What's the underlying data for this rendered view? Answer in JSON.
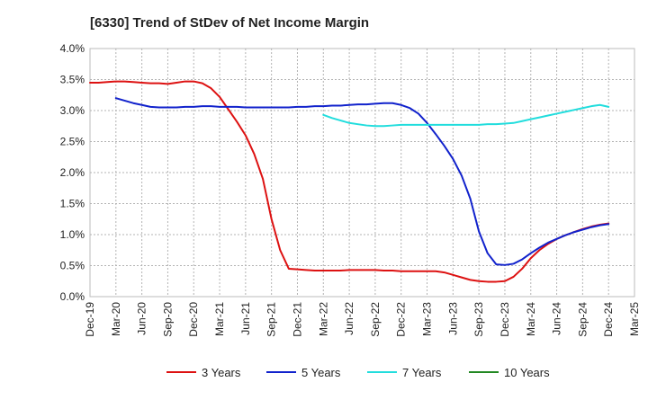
{
  "chart_data": {
    "type": "line",
    "title": "[6330]  Trend of StDev of Net Income Margin",
    "xlabel": "",
    "ylabel": "",
    "x_ticks": [
      "Dec-19",
      "Mar-20",
      "Jun-20",
      "Sep-20",
      "Dec-20",
      "Mar-21",
      "Jun-21",
      "Sep-21",
      "Dec-21",
      "Mar-22",
      "Jun-22",
      "Sep-22",
      "Dec-22",
      "Mar-23",
      "Jun-23",
      "Sep-23",
      "Dec-23",
      "Mar-24",
      "Jun-24",
      "Sep-24",
      "Dec-24",
      "Mar-25"
    ],
    "y_ticks": [
      "0.0%",
      "0.5%",
      "1.0%",
      "1.5%",
      "2.0%",
      "2.5%",
      "3.0%",
      "3.5%",
      "4.0%"
    ],
    "ylim": [
      0,
      4.0
    ],
    "grid": true,
    "legend_position": "bottom",
    "series": [
      {
        "name": "3 Years",
        "color": "#dd1111",
        "points": [
          [
            "Dec-19",
            3.45
          ],
          [
            "Jan-20",
            3.45
          ],
          [
            "Feb-20",
            3.46
          ],
          [
            "Mar-20",
            3.47
          ],
          [
            "Apr-20",
            3.47
          ],
          [
            "May-20",
            3.46
          ],
          [
            "Jun-20",
            3.45
          ],
          [
            "Jul-20",
            3.44
          ],
          [
            "Aug-20",
            3.44
          ],
          [
            "Sep-20",
            3.43
          ],
          [
            "Oct-20",
            3.45
          ],
          [
            "Nov-20",
            3.47
          ],
          [
            "Dec-20",
            3.47
          ],
          [
            "Jan-21",
            3.44
          ],
          [
            "Feb-21",
            3.36
          ],
          [
            "Mar-21",
            3.22
          ],
          [
            "Apr-21",
            3.02
          ],
          [
            "May-21",
            2.82
          ],
          [
            "Jun-21",
            2.6
          ],
          [
            "Jul-21",
            2.3
          ],
          [
            "Aug-21",
            1.9
          ],
          [
            "Sep-21",
            1.25
          ],
          [
            "Oct-21",
            0.75
          ],
          [
            "Nov-21",
            0.45
          ],
          [
            "Dec-21",
            0.44
          ],
          [
            "Jan-22",
            0.43
          ],
          [
            "Feb-22",
            0.42
          ],
          [
            "Mar-22",
            0.42
          ],
          [
            "Apr-22",
            0.42
          ],
          [
            "May-22",
            0.42
          ],
          [
            "Jun-22",
            0.43
          ],
          [
            "Jul-22",
            0.43
          ],
          [
            "Aug-22",
            0.43
          ],
          [
            "Sep-22",
            0.43
          ],
          [
            "Oct-22",
            0.42
          ],
          [
            "Nov-22",
            0.42
          ],
          [
            "Dec-22",
            0.41
          ],
          [
            "Jan-23",
            0.41
          ],
          [
            "Feb-23",
            0.41
          ],
          [
            "Mar-23",
            0.41
          ],
          [
            "Apr-23",
            0.41
          ],
          [
            "May-23",
            0.39
          ],
          [
            "Jun-23",
            0.35
          ],
          [
            "Jul-23",
            0.31
          ],
          [
            "Aug-23",
            0.27
          ],
          [
            "Sep-23",
            0.25
          ],
          [
            "Oct-23",
            0.24
          ],
          [
            "Nov-23",
            0.24
          ],
          [
            "Dec-23",
            0.25
          ],
          [
            "Jan-24",
            0.32
          ],
          [
            "Feb-24",
            0.45
          ],
          [
            "Mar-24",
            0.62
          ],
          [
            "Apr-24",
            0.75
          ],
          [
            "May-24",
            0.85
          ],
          [
            "Jun-24",
            0.93
          ],
          [
            "Jul-24",
            0.99
          ],
          [
            "Aug-24",
            1.04
          ],
          [
            "Sep-24",
            1.09
          ],
          [
            "Oct-24",
            1.13
          ],
          [
            "Nov-24",
            1.16
          ],
          [
            "Dec-24",
            1.18
          ]
        ]
      },
      {
        "name": "5 Years",
        "color": "#1122cc",
        "points": [
          [
            "Mar-20",
            3.2
          ],
          [
            "Apr-20",
            3.16
          ],
          [
            "May-20",
            3.12
          ],
          [
            "Jun-20",
            3.09
          ],
          [
            "Jul-20",
            3.06
          ],
          [
            "Aug-20",
            3.05
          ],
          [
            "Sep-20",
            3.05
          ],
          [
            "Oct-20",
            3.05
          ],
          [
            "Nov-20",
            3.06
          ],
          [
            "Dec-20",
            3.06
          ],
          [
            "Jan-21",
            3.07
          ],
          [
            "Feb-21",
            3.07
          ],
          [
            "Mar-21",
            3.06
          ],
          [
            "Apr-21",
            3.06
          ],
          [
            "May-21",
            3.06
          ],
          [
            "Jun-21",
            3.05
          ],
          [
            "Jul-21",
            3.05
          ],
          [
            "Aug-21",
            3.05
          ],
          [
            "Sep-21",
            3.05
          ],
          [
            "Oct-21",
            3.05
          ],
          [
            "Nov-21",
            3.05
          ],
          [
            "Dec-21",
            3.06
          ],
          [
            "Jan-22",
            3.06
          ],
          [
            "Feb-22",
            3.07
          ],
          [
            "Mar-22",
            3.07
          ],
          [
            "Apr-22",
            3.08
          ],
          [
            "May-22",
            3.08
          ],
          [
            "Jun-22",
            3.09
          ],
          [
            "Jul-22",
            3.1
          ],
          [
            "Aug-22",
            3.1
          ],
          [
            "Sep-22",
            3.11
          ],
          [
            "Oct-22",
            3.12
          ],
          [
            "Nov-22",
            3.12
          ],
          [
            "Dec-22",
            3.09
          ],
          [
            "Jan-23",
            3.04
          ],
          [
            "Feb-23",
            2.95
          ],
          [
            "Mar-23",
            2.8
          ],
          [
            "Apr-23",
            2.62
          ],
          [
            "May-23",
            2.43
          ],
          [
            "Jun-23",
            2.22
          ],
          [
            "Jul-23",
            1.95
          ],
          [
            "Aug-23",
            1.58
          ],
          [
            "Sep-23",
            1.05
          ],
          [
            "Oct-23",
            0.7
          ],
          [
            "Nov-23",
            0.52
          ],
          [
            "Dec-23",
            0.51
          ],
          [
            "Jan-24",
            0.53
          ],
          [
            "Feb-24",
            0.6
          ],
          [
            "Mar-24",
            0.7
          ],
          [
            "Apr-24",
            0.79
          ],
          [
            "May-24",
            0.87
          ],
          [
            "Jun-24",
            0.93
          ],
          [
            "Jul-24",
            0.99
          ],
          [
            "Aug-24",
            1.04
          ],
          [
            "Sep-24",
            1.08
          ],
          [
            "Oct-24",
            1.12
          ],
          [
            "Nov-24",
            1.15
          ],
          [
            "Dec-24",
            1.17
          ]
        ]
      },
      {
        "name": "7 Years",
        "color": "#22dddd",
        "points": [
          [
            "Mar-22",
            2.93
          ],
          [
            "Apr-22",
            2.88
          ],
          [
            "May-22",
            2.84
          ],
          [
            "Jun-22",
            2.8
          ],
          [
            "Jul-22",
            2.78
          ],
          [
            "Aug-22",
            2.76
          ],
          [
            "Sep-22",
            2.75
          ],
          [
            "Oct-22",
            2.75
          ],
          [
            "Nov-22",
            2.76
          ],
          [
            "Dec-22",
            2.77
          ],
          [
            "Jan-23",
            2.77
          ],
          [
            "Feb-23",
            2.77
          ],
          [
            "Mar-23",
            2.77
          ],
          [
            "Apr-23",
            2.77
          ],
          [
            "May-23",
            2.77
          ],
          [
            "Jun-23",
            2.77
          ],
          [
            "Jul-23",
            2.77
          ],
          [
            "Aug-23",
            2.77
          ],
          [
            "Sep-23",
            2.77
          ],
          [
            "Oct-23",
            2.78
          ],
          [
            "Nov-23",
            2.78
          ],
          [
            "Dec-23",
            2.79
          ],
          [
            "Jan-24",
            2.8
          ],
          [
            "Feb-24",
            2.83
          ],
          [
            "Mar-24",
            2.86
          ],
          [
            "Apr-24",
            2.89
          ],
          [
            "May-24",
            2.92
          ],
          [
            "Jun-24",
            2.95
          ],
          [
            "Jul-24",
            2.98
          ],
          [
            "Aug-24",
            3.01
          ],
          [
            "Sep-24",
            3.04
          ],
          [
            "Oct-24",
            3.07
          ],
          [
            "Nov-24",
            3.09
          ],
          [
            "Dec-24",
            3.06
          ]
        ]
      },
      {
        "name": "10 Years",
        "color": "#228822",
        "points": []
      }
    ]
  }
}
